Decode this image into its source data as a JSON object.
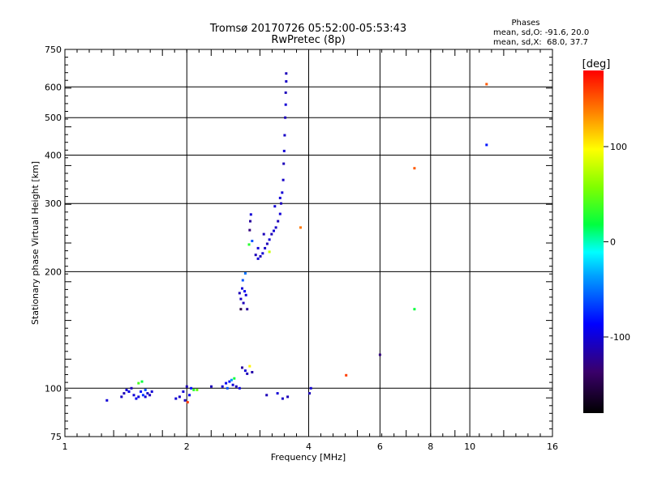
{
  "chart_data": {
    "type": "scatter",
    "title": "Tromsø 20170726 05:52:00-05:53:43",
    "subtitle": "RwPretec (8p)",
    "xlabel": "Frequency [MHz]",
    "ylabel": "Stationary phase Virtual Height [km]",
    "x_scale": "log",
    "y_scale": "log",
    "xlim": [
      1,
      16
    ],
    "ylim": [
      75,
      750
    ],
    "x_ticks": [
      1,
      2,
      4,
      6,
      8,
      10,
      16
    ],
    "y_ticks": [
      75,
      100,
      200,
      300,
      400,
      500,
      600,
      750
    ],
    "grid": true,
    "stats": {
      "heading": "Phases",
      "line1": "mean, sd,O: -91.6, 20.0",
      "line2": "mean, sd,X:  68.0, 37.7"
    },
    "colorbar": {
      "label": "[deg]",
      "range": [
        -180,
        180
      ],
      "ticks": [
        100,
        0,
        -100
      ]
    },
    "series": [
      {
        "points": [
          [
            1.27,
            93,
            -100
          ],
          [
            1.38,
            95,
            -105
          ],
          [
            1.4,
            97,
            -110
          ],
          [
            1.42,
            99,
            -100
          ],
          [
            1.44,
            98,
            -95
          ],
          [
            1.46,
            100,
            -110
          ],
          [
            1.48,
            96,
            -100
          ],
          [
            1.5,
            94,
            -90
          ],
          [
            1.52,
            95,
            -100
          ],
          [
            1.54,
            98,
            -80
          ],
          [
            1.56,
            96,
            -70
          ],
          [
            1.58,
            95,
            -100
          ],
          [
            1.6,
            97,
            -105
          ],
          [
            1.62,
            96,
            -110
          ],
          [
            1.64,
            98,
            -100
          ],
          [
            1.52,
            103,
            40
          ],
          [
            1.55,
            104,
            20
          ],
          [
            1.58,
            99,
            -60
          ],
          [
            1.88,
            94,
            -100
          ],
          [
            1.92,
            95,
            -105
          ],
          [
            1.96,
            98,
            -100
          ],
          [
            2.0,
            101,
            -110
          ],
          [
            2.03,
            96,
            -90
          ],
          [
            2.05,
            100,
            -80
          ],
          [
            1.98,
            93,
            -110
          ],
          [
            2.08,
            99,
            30
          ],
          [
            2.12,
            99,
            50
          ],
          [
            2.01,
            92,
            160
          ],
          [
            2.3,
            101,
            -110
          ],
          [
            2.45,
            101,
            -100
          ],
          [
            2.5,
            103,
            -90
          ],
          [
            2.55,
            104,
            -80
          ],
          [
            2.6,
            102,
            -100
          ],
          [
            2.65,
            101,
            -110
          ],
          [
            2.7,
            100,
            -95
          ],
          [
            2.52,
            100,
            -60
          ],
          [
            2.58,
            105,
            -40
          ],
          [
            2.62,
            106,
            20
          ],
          [
            2.74,
            113,
            -120
          ],
          [
            2.79,
            111,
            -100
          ],
          [
            2.82,
            109,
            -110
          ],
          [
            2.86,
            114,
            100
          ],
          [
            2.9,
            110,
            -115
          ],
          [
            2.7,
            176,
            -110
          ],
          [
            2.72,
            170,
            -105
          ],
          [
            2.74,
            181,
            -100
          ],
          [
            2.76,
            166,
            -110
          ],
          [
            2.78,
            178,
            -90
          ],
          [
            2.8,
            174,
            -100
          ],
          [
            2.82,
            160,
            -120
          ],
          [
            2.75,
            190,
            -60
          ],
          [
            2.79,
            198,
            -50
          ],
          [
            2.72,
            160,
            -150
          ],
          [
            2.86,
            256,
            -130
          ],
          [
            2.87,
            270,
            -120
          ],
          [
            2.88,
            281,
            -100
          ],
          [
            2.9,
            240,
            -60
          ],
          [
            2.85,
            235,
            30
          ],
          [
            2.96,
            221,
            -110
          ],
          [
            3.0,
            216,
            -100
          ],
          [
            3.04,
            219,
            -110
          ],
          [
            3.08,
            223,
            -100
          ],
          [
            3.12,
            230,
            -105
          ],
          [
            3.16,
            236,
            -110
          ],
          [
            3.2,
            242,
            -100
          ],
          [
            3.24,
            250,
            -110
          ],
          [
            3.28,
            255,
            -100
          ],
          [
            3.32,
            260,
            -105
          ],
          [
            3.36,
            270,
            -110
          ],
          [
            3.4,
            282,
            -100
          ],
          [
            3.42,
            300,
            -110
          ],
          [
            3.44,
            320,
            -100
          ],
          [
            3.46,
            345,
            -105
          ],
          [
            3.47,
            380,
            -110
          ],
          [
            3.48,
            410,
            -100
          ],
          [
            3.49,
            450,
            -105
          ],
          [
            3.5,
            500,
            -110
          ],
          [
            3.51,
            540,
            -100
          ],
          [
            3.51,
            580,
            -110
          ],
          [
            3.52,
            620,
            -105
          ],
          [
            3.52,
            650,
            -110
          ],
          [
            3.0,
            230,
            -100
          ],
          [
            3.1,
            250,
            -110
          ],
          [
            3.2,
            225,
            80
          ],
          [
            3.3,
            295,
            -100
          ],
          [
            3.4,
            310,
            -100
          ],
          [
            3.15,
            96,
            -110
          ],
          [
            3.35,
            97,
            -100
          ],
          [
            3.45,
            94,
            -105
          ],
          [
            3.55,
            95,
            -110
          ],
          [
            3.82,
            260,
            140
          ],
          [
            4.02,
            97,
            -110
          ],
          [
            4.05,
            100,
            -100
          ],
          [
            4.95,
            108,
            160
          ],
          [
            6.0,
            122,
            -130
          ],
          [
            7.3,
            370,
            150
          ],
          [
            7.3,
            160,
            20
          ],
          [
            11.0,
            610,
            150
          ],
          [
            11.0,
            425,
            -80
          ]
        ]
      }
    ]
  }
}
